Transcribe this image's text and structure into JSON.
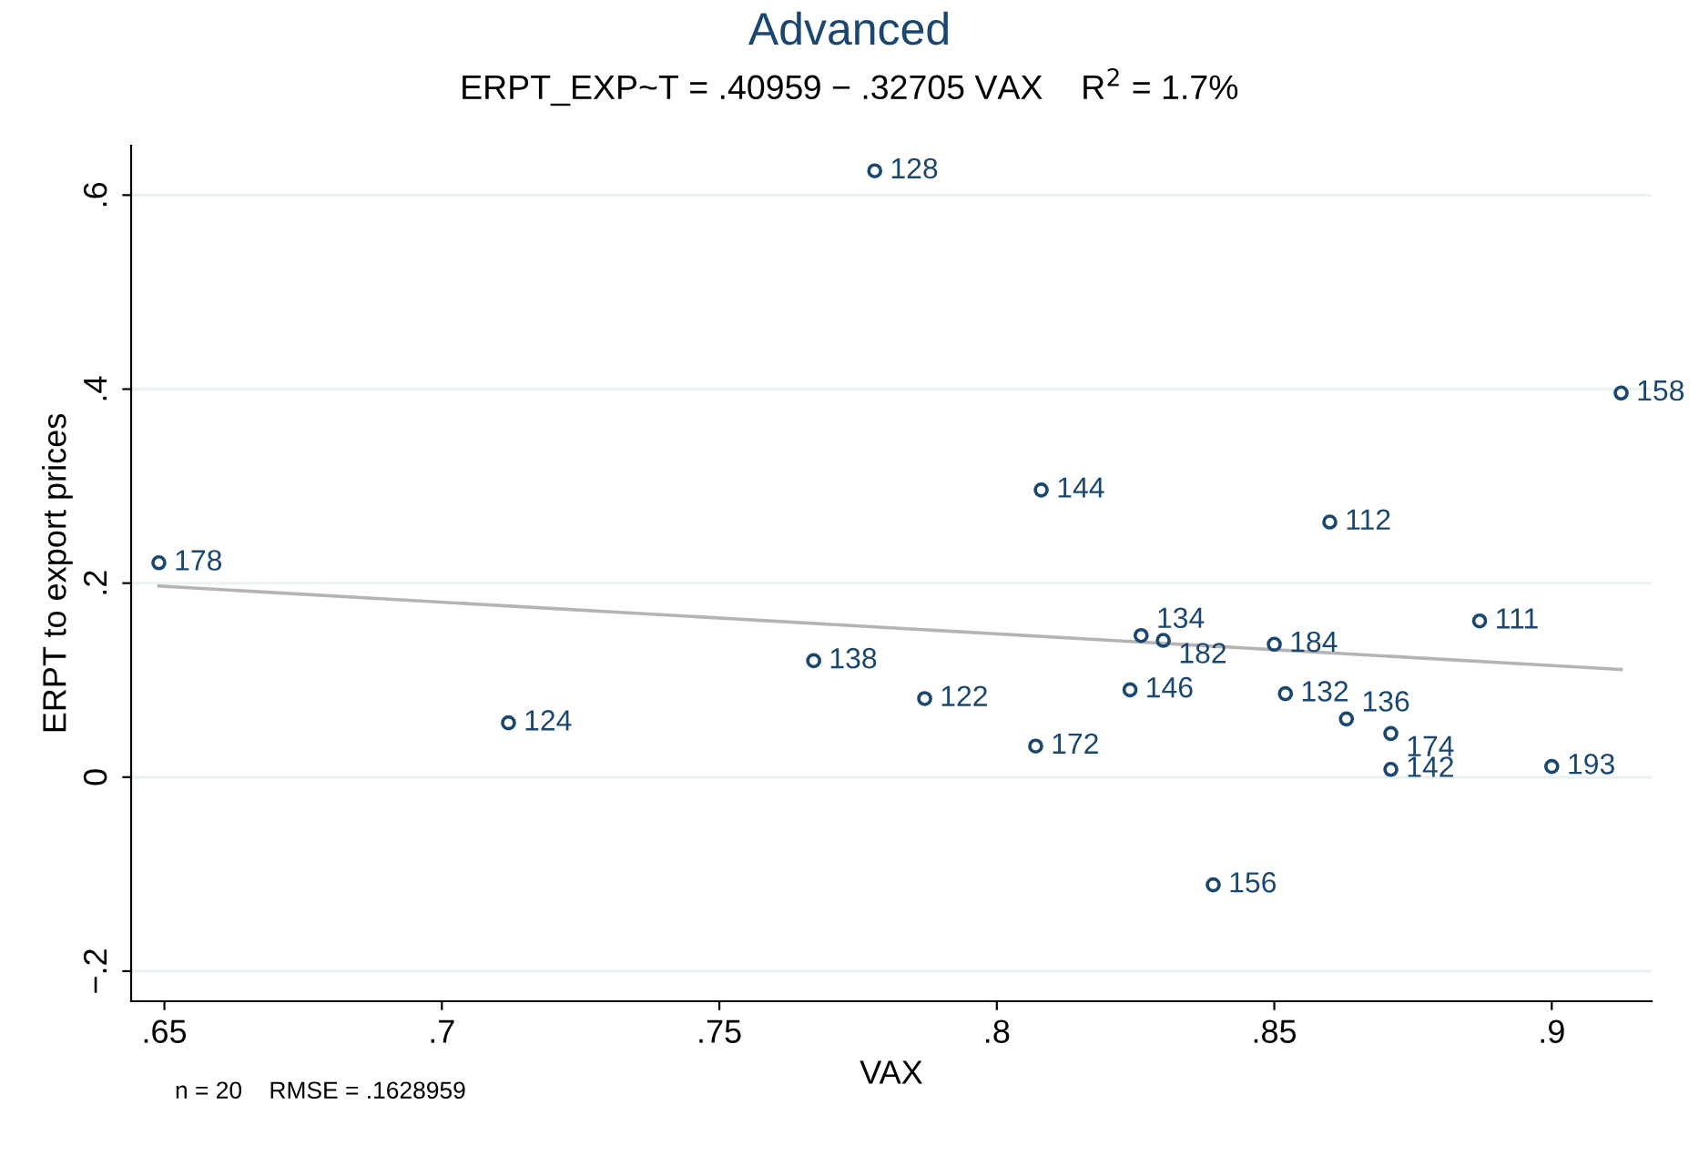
{
  "chart_data": {
    "type": "scatter",
    "title": "Advanced",
    "subtitle": "ERPT_EXP~T = .40959 − .32705 VAX    R$^{2}$ = 1.7%",
    "xlabel": "VAX",
    "ylabel": "ERPT to export prices",
    "series": [
      {
        "color": "#1a476f",
        "marker": "circle",
        "x": [
          0.778,
          0.9125,
          0.808,
          0.86,
          0.649,
          0.887,
          0.826,
          0.83,
          0.85,
          0.767,
          0.787,
          0.824,
          0.852,
          0.712,
          0.863,
          0.871,
          0.807,
          0.871,
          0.9,
          0.839
        ],
        "values": [
          0.625,
          0.396,
          0.296,
          0.263,
          0.221,
          0.161,
          0.146,
          0.141,
          0.137,
          0.12,
          0.081,
          0.09,
          0.086,
          0.056,
          0.06,
          0.045,
          0.032,
          0.008,
          0.011,
          -0.111
        ]
      },
      {
        "type": "line",
        "color": "#b4b4b4",
        "marker": "none",
        "x": [
          0.649,
          0.9125
        ],
        "values": [
          0.197,
          0.111
        ]
      }
    ],
    "annotations": [
      {
        "text": "128",
        "x": 0.778,
        "y": 0.625
      },
      {
        "text": "158",
        "x": 0.9125,
        "y": 0.396
      },
      {
        "text": "144",
        "x": 0.808,
        "y": 0.296
      },
      {
        "text": "112",
        "x": 0.86,
        "y": 0.263
      },
      {
        "text": "178",
        "x": 0.649,
        "y": 0.221
      },
      {
        "text": "111",
        "x": 0.887,
        "y": 0.161
      },
      {
        "text": "134",
        "x": 0.826,
        "y": 0.146
      },
      {
        "text": "182",
        "x": 0.83,
        "y": 0.141
      },
      {
        "text": "184",
        "x": 0.85,
        "y": 0.137
      },
      {
        "text": "138",
        "x": 0.767,
        "y": 0.12
      },
      {
        "text": "122",
        "x": 0.787,
        "y": 0.081
      },
      {
        "text": "146",
        "x": 0.824,
        "y": 0.09
      },
      {
        "text": "132",
        "x": 0.852,
        "y": 0.086
      },
      {
        "text": "124",
        "x": 0.712,
        "y": 0.056
      },
      {
        "text": "136",
        "x": 0.863,
        "y": 0.06
      },
      {
        "text": "174",
        "x": 0.871,
        "y": 0.045
      },
      {
        "text": "172",
        "x": 0.807,
        "y": 0.032
      },
      {
        "text": "142",
        "x": 0.871,
        "y": 0.008
      },
      {
        "text": "193",
        "x": 0.9,
        "y": 0.011
      },
      {
        "text": "156",
        "x": 0.839,
        "y": -0.111
      },
      "n = 20    RMSE = .1628959"
    ],
    "xlim": [
      0.644,
      0.918
    ],
    "ylim": [
      -0.231,
      0.651
    ],
    "xticks": [
      {
        "value": 0.65,
        "label": ".65"
      },
      {
        "value": 0.7,
        "label": ".7"
      },
      {
        "value": 0.75,
        "label": ".75"
      },
      {
        "value": 0.8,
        "label": ".8"
      },
      {
        "value": 0.85,
        "label": ".85"
      },
      {
        "value": 0.9,
        "label": ".9"
      }
    ],
    "yticks": [
      {
        "value": -0.2,
        "label": "−.2"
      },
      0,
      {
        "value": 0.2,
        "label": ".2"
      },
      {
        "value": 0.4,
        "label": ".4"
      },
      {
        "value": 0.6,
        "label": ".6"
      }
    ],
    "grid": "y",
    "legend": false
  }
}
